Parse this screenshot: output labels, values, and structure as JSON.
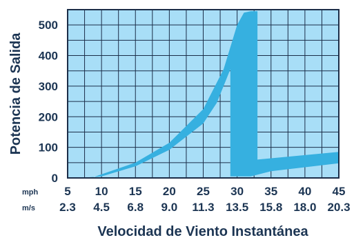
{
  "chart_data": {
    "type": "area",
    "ylabel": "Potencia de Salida",
    "xlabel": "Velocidad de Viento Instantánea",
    "xlim": [
      5,
      45
    ],
    "ylim": [
      0,
      550
    ],
    "grid": true,
    "y_ticks": [
      "0",
      "100",
      "200",
      "300",
      "400",
      "500"
    ],
    "y_tick_values": [
      0,
      100,
      200,
      300,
      400,
      500
    ],
    "x_tick_values": [
      5,
      10,
      15,
      20,
      25,
      30,
      35,
      40,
      45
    ],
    "x_rows": [
      {
        "unit": "mph",
        "labels": [
          "5",
          "10",
          "15",
          "20",
          "25",
          "30",
          "35",
          "40",
          "45"
        ]
      },
      {
        "unit": "m/s",
        "labels": [
          "2.3",
          "4.5",
          "6.8",
          "9.0",
          "11.3",
          "13.5",
          "15.8",
          "18.0",
          "20.3"
        ]
      }
    ],
    "series": [
      {
        "upper": [
          [
            8.5,
            0
          ],
          [
            10,
            12
          ],
          [
            15,
            50
          ],
          [
            20,
            115
          ],
          [
            25,
            225
          ],
          [
            28,
            355
          ],
          [
            30,
            500
          ],
          [
            31,
            540
          ],
          [
            32,
            545
          ],
          [
            33,
            545
          ],
          [
            33,
            60
          ],
          [
            45,
            85
          ]
        ],
        "lower": [
          [
            6.5,
            0
          ],
          [
            10,
            5
          ],
          [
            15,
            38
          ],
          [
            20,
            92
          ],
          [
            25,
            178
          ],
          [
            27,
            245
          ],
          [
            29,
            355
          ],
          [
            29,
            5
          ],
          [
            32,
            5
          ],
          [
            35,
            22
          ],
          [
            45,
            48
          ]
        ]
      }
    ],
    "colors": {
      "background": "#a8def7",
      "band": "#36b0e0",
      "grid": "#1b2d48",
      "text": "#1c3553"
    }
  }
}
